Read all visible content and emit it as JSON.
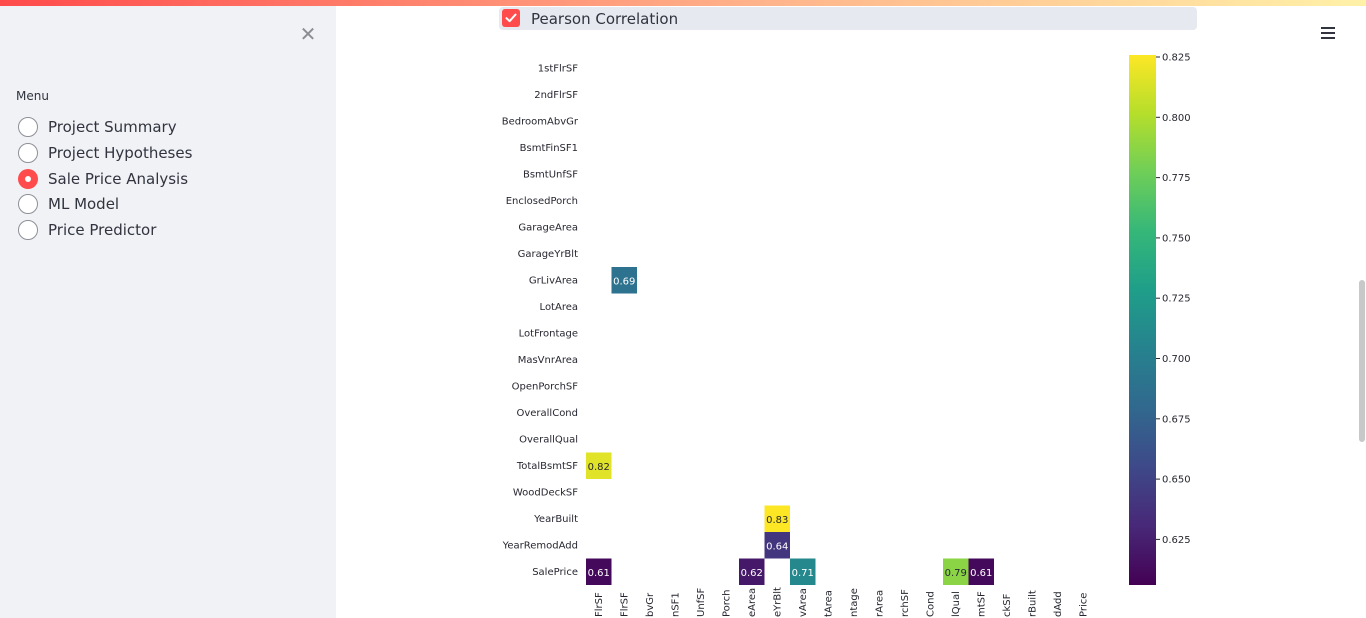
{
  "sidebar": {
    "menu_label": "Menu",
    "items": [
      {
        "label": "Project Summary",
        "selected": false
      },
      {
        "label": "Project Hypotheses",
        "selected": false
      },
      {
        "label": "Sale Price Analysis",
        "selected": true
      },
      {
        "label": "ML Model",
        "selected": false
      },
      {
        "label": "Price Predictor",
        "selected": false
      }
    ],
    "close_icon": "close-icon"
  },
  "main": {
    "checkbox": {
      "label": "Pearson Correlation",
      "checked": true
    },
    "menu_icon": "hamburger-menu-icon"
  },
  "colors": {
    "accent": "#ff4b4b",
    "sidebar_bg": "#f0f2f6"
  },
  "chart_data": {
    "type": "heatmap",
    "colormap": "viridis",
    "y_labels": [
      "1stFlrSF",
      "2ndFlrSF",
      "BedroomAbvGr",
      "BsmtFinSF1",
      "BsmtUnfSF",
      "EnclosedPorch",
      "GarageArea",
      "GarageYrBlt",
      "GrLivArea",
      "LotArea",
      "LotFrontage",
      "MasVnrArea",
      "OpenPorchSF",
      "OverallCond",
      "OverallQual",
      "TotalBsmtSF",
      "WoodDeckSF",
      "YearBuilt",
      "YearRemodAdd",
      "SalePrice"
    ],
    "x_tick_labels_visible": [
      "FlrSF",
      "FlrSF",
      "bvGr",
      "nSF1",
      "UnfSF",
      "Porch",
      "eArea",
      "eYrBlt",
      "vArea",
      "tArea",
      "ntage",
      "rArea",
      "rchSF",
      "Cond",
      "lQual",
      "mtSF",
      "ckSF",
      "rBuilt",
      "dAdd",
      "Price"
    ],
    "cells": [
      {
        "row": "GrLivArea",
        "col_index": 1,
        "value": 0.69
      },
      {
        "row": "TotalBsmtSF",
        "col_index": 0,
        "value": 0.82
      },
      {
        "row": "YearBuilt",
        "col_index": 7,
        "value": 0.83
      },
      {
        "row": "YearRemodAdd",
        "col_index": 7,
        "value": 0.64
      },
      {
        "row": "SalePrice",
        "col_index": 0,
        "value": 0.61
      },
      {
        "row": "SalePrice",
        "col_index": 6,
        "value": 0.62
      },
      {
        "row": "SalePrice",
        "col_index": 8,
        "value": 0.71
      },
      {
        "row": "SalePrice",
        "col_index": 14,
        "value": 0.79
      },
      {
        "row": "SalePrice",
        "col_index": 15,
        "value": 0.61
      }
    ],
    "colorbar": {
      "ticks": [
        "0.825",
        "0.800",
        "0.775",
        "0.750",
        "0.725",
        "0.700",
        "0.675",
        "0.650",
        "0.625"
      ],
      "range": [
        0.605,
        0.83
      ]
    }
  }
}
